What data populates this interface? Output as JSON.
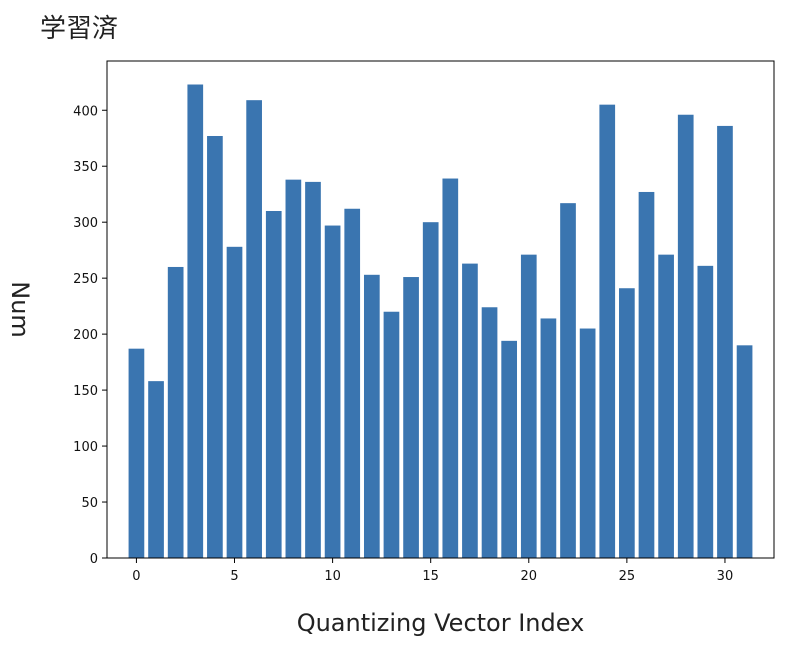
{
  "page_title": "学習済",
  "chart_data": {
    "type": "bar",
    "title": "",
    "xlabel": "Quantizing Vector Index",
    "ylabel": "Num",
    "x": [
      0,
      1,
      2,
      3,
      4,
      5,
      6,
      7,
      8,
      9,
      10,
      11,
      12,
      13,
      14,
      15,
      16,
      17,
      18,
      19,
      20,
      21,
      22,
      23,
      24,
      25,
      26,
      27,
      28,
      29,
      30,
      31
    ],
    "values": [
      187,
      158,
      260,
      423,
      377,
      278,
      409,
      310,
      338,
      336,
      297,
      312,
      253,
      220,
      251,
      300,
      339,
      263,
      224,
      194,
      271,
      214,
      317,
      205,
      405,
      241,
      327,
      271,
      396,
      261,
      386,
      190
    ],
    "xlim": [
      -1.5,
      32.5
    ],
    "ylim": [
      0,
      444
    ],
    "xticks": [
      0,
      5,
      10,
      15,
      20,
      25,
      30
    ],
    "yticks": [
      0,
      50,
      100,
      150,
      200,
      250,
      300,
      350,
      400
    ],
    "bar_color": "#3a75b0",
    "grid": false,
    "legend": "none"
  }
}
